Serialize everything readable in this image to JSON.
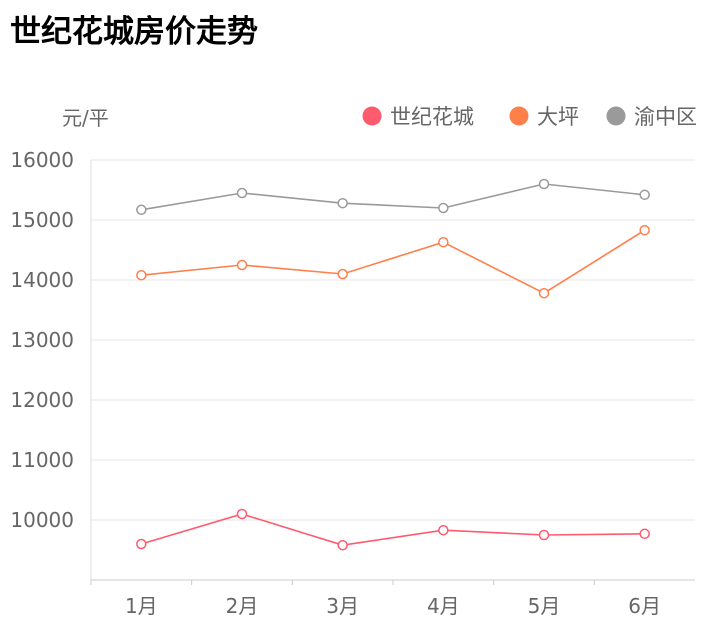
{
  "chart_data": {
    "type": "line",
    "title": "世纪花城房价走势",
    "ylabel": "元/平",
    "categories": [
      "1月",
      "2月",
      "3月",
      "4月",
      "5月",
      "6月"
    ],
    "ylim": [
      9000,
      16000
    ],
    "yticks": [
      "10000",
      "11000",
      "12000",
      "13000",
      "14000",
      "15000",
      "16000"
    ],
    "grid": true,
    "legend_position": "top-right",
    "series": [
      {
        "name": "世纪花城",
        "color": "#ff5a6e",
        "values": [
          9600,
          10100,
          9580,
          9830,
          9750,
          9770
        ]
      },
      {
        "name": "大坪",
        "color": "#ff7f4a",
        "values": [
          14080,
          14250,
          14100,
          14630,
          13780,
          14830
        ]
      },
      {
        "name": "渝中区",
        "color": "#9a9a9a",
        "values": [
          15170,
          15450,
          15280,
          15200,
          15600,
          15420
        ]
      }
    ]
  }
}
